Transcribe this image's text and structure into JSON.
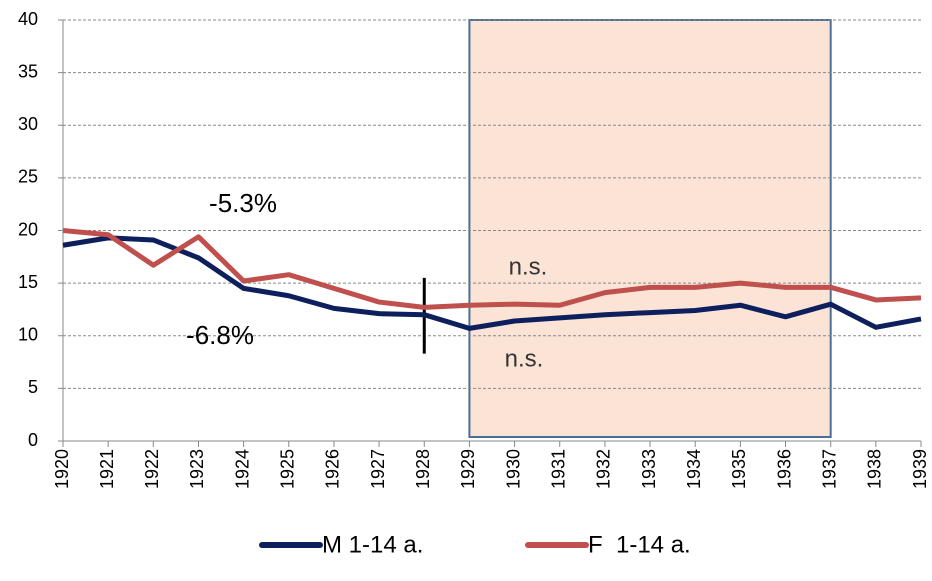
{
  "chart_data": {
    "type": "line",
    "x": [
      1920,
      1921,
      1922,
      1923,
      1924,
      1925,
      1926,
      1927,
      1928,
      1929,
      1930,
      1931,
      1932,
      1933,
      1934,
      1935,
      1936,
      1937,
      1938,
      1939
    ],
    "series": [
      {
        "name": "M 1-14 a.",
        "color": "#0d1f5c",
        "values": [
          18.6,
          19.3,
          19.1,
          17.4,
          14.5,
          13.8,
          12.6,
          12.1,
          12.0,
          10.7,
          11.4,
          11.7,
          12.0,
          12.2,
          12.4,
          12.9,
          11.8,
          13.0,
          10.8,
          11.6
        ]
      },
      {
        "name": "F  1-14 a.",
        "color": "#c0504d",
        "values": [
          20.0,
          19.6,
          16.7,
          19.4,
          15.2,
          15.8,
          14.5,
          13.2,
          12.7,
          12.9,
          13.0,
          12.9,
          14.1,
          14.6,
          14.6,
          15.0,
          14.6,
          14.6,
          13.4,
          13.6
        ]
      }
    ],
    "xlim": [
      1920,
      1939
    ],
    "xticks": [
      1920,
      1921,
      1922,
      1923,
      1924,
      1925,
      1926,
      1927,
      1928,
      1929,
      1930,
      1931,
      1932,
      1933,
      1934,
      1935,
      1936,
      1937,
      1938,
      1939
    ],
    "ylim": [
      0,
      40
    ],
    "yticks": [
      0,
      5,
      10,
      15,
      20,
      25,
      30,
      35,
      40
    ],
    "grid": true,
    "highlight_range": [
      1929,
      1937
    ],
    "breakpoint": 1928,
    "annotations": [
      "-5.3%",
      "-6.8%",
      "n.s.",
      "n.s."
    ]
  }
}
